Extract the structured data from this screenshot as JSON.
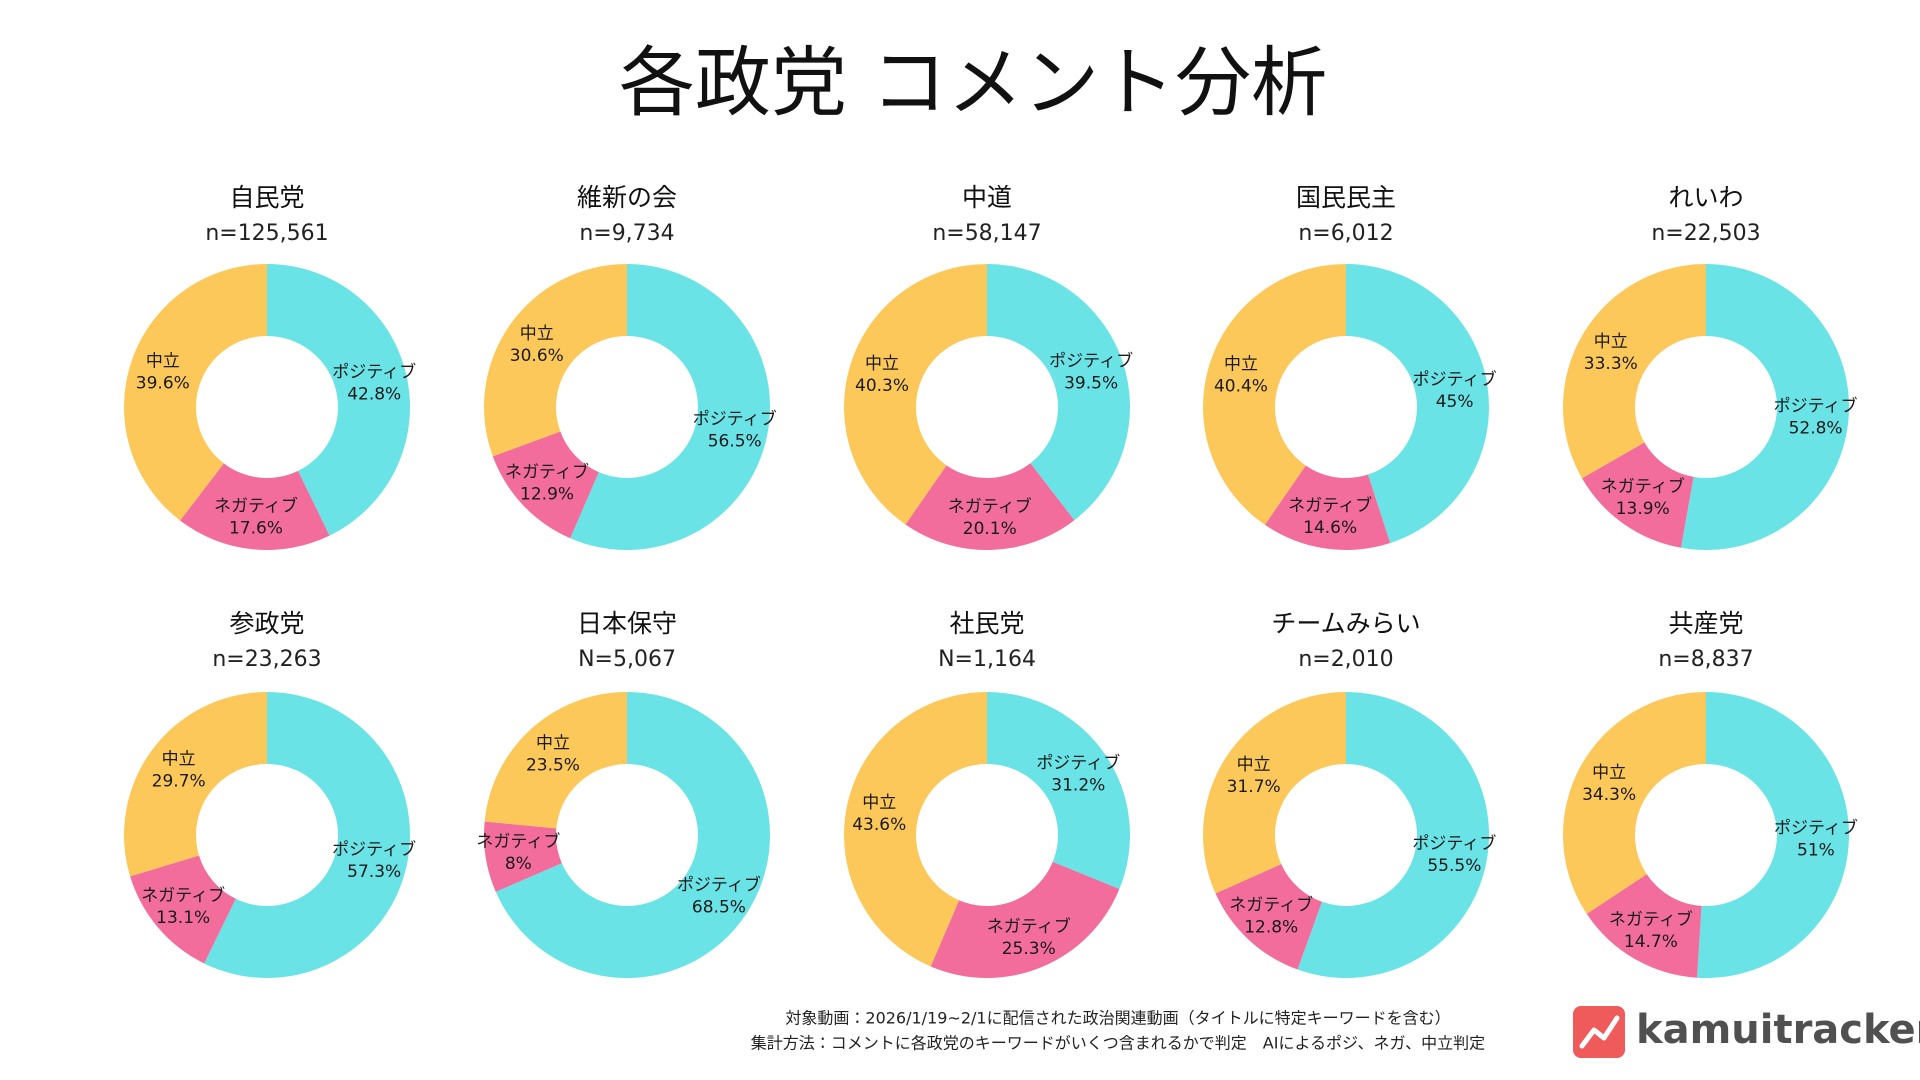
{
  "title": "各政党 コメント分析",
  "chart_data": [
    {
      "type": "pie",
      "title": "自民党",
      "subtitle": "n=125,561",
      "categories": [
        "ポジティブ",
        "ネガティブ",
        "中立"
      ],
      "values": [
        42.8,
        17.6,
        39.6
      ],
      "value_labels": [
        "42.8%",
        "17.6%",
        "39.6%"
      ],
      "colors": [
        "#6ae3e6",
        "#f26d9c",
        "#fdc85a"
      ]
    },
    {
      "type": "pie",
      "title": "維新の会",
      "subtitle": "n=9,734",
      "categories": [
        "ポジティブ",
        "ネガティブ",
        "中立"
      ],
      "values": [
        56.5,
        12.9,
        30.6
      ],
      "value_labels": [
        "56.5%",
        "12.9%",
        "30.6%"
      ],
      "colors": [
        "#6ae3e6",
        "#f26d9c",
        "#fdc85a"
      ]
    },
    {
      "type": "pie",
      "title": "中道",
      "subtitle": "n=58,147",
      "categories": [
        "ポジティブ",
        "ネガティブ",
        "中立"
      ],
      "values": [
        39.5,
        20.1,
        40.3
      ],
      "value_labels": [
        "39.5%",
        "20.1%",
        "40.3%"
      ],
      "colors": [
        "#6ae3e6",
        "#f26d9c",
        "#fdc85a"
      ]
    },
    {
      "type": "pie",
      "title": "国民民主",
      "subtitle": "n=6,012",
      "categories": [
        "ポジティブ",
        "ネガティブ",
        "中立"
      ],
      "values": [
        45,
        14.6,
        40.4
      ],
      "value_labels": [
        "45%",
        "14.6%",
        "40.4%"
      ],
      "colors": [
        "#6ae3e6",
        "#f26d9c",
        "#fdc85a"
      ]
    },
    {
      "type": "pie",
      "title": "れいわ",
      "subtitle": "n=22,503",
      "categories": [
        "ポジティブ",
        "ネガティブ",
        "中立"
      ],
      "values": [
        52.8,
        13.9,
        33.3
      ],
      "value_labels": [
        "52.8%",
        "13.9%",
        "33.3%"
      ],
      "colors": [
        "#6ae3e6",
        "#f26d9c",
        "#fdc85a"
      ]
    },
    {
      "type": "pie",
      "title": "参政党",
      "subtitle": "n=23,263",
      "categories": [
        "ポジティブ",
        "ネガティブ",
        "中立"
      ],
      "values": [
        57.3,
        13.1,
        29.7
      ],
      "value_labels": [
        "57.3%",
        "13.1%",
        "29.7%"
      ],
      "colors": [
        "#6ae3e6",
        "#f26d9c",
        "#fdc85a"
      ]
    },
    {
      "type": "pie",
      "title": "日本保守",
      "subtitle": "N=5,067",
      "categories": [
        "ポジティブ",
        "ネガティブ",
        "中立"
      ],
      "values": [
        68.5,
        8,
        23.5
      ],
      "value_labels": [
        "68.5%",
        "8%",
        "23.5%"
      ],
      "colors": [
        "#6ae3e6",
        "#f26d9c",
        "#fdc85a"
      ]
    },
    {
      "type": "pie",
      "title": "社民党",
      "subtitle": "N=1,164",
      "categories": [
        "ポジティブ",
        "ネガティブ",
        "中立"
      ],
      "values": [
        31.2,
        25.3,
        43.6
      ],
      "value_labels": [
        "31.2%",
        "25.3%",
        "43.6%"
      ],
      "colors": [
        "#6ae3e6",
        "#f26d9c",
        "#fdc85a"
      ]
    },
    {
      "type": "pie",
      "title": "チームみらい",
      "subtitle": "n=2,010",
      "categories": [
        "ポジティブ",
        "ネガティブ",
        "中立"
      ],
      "values": [
        55.5,
        12.8,
        31.7
      ],
      "value_labels": [
        "55.5%",
        "12.8%",
        "31.7%"
      ],
      "colors": [
        "#6ae3e6",
        "#f26d9c",
        "#fdc85a"
      ]
    },
    {
      "type": "pie",
      "title": "共産党",
      "subtitle": "n=8,837",
      "categories": [
        "ポジティブ",
        "ネガティブ",
        "中立"
      ],
      "values": [
        51,
        14.7,
        34.3
      ],
      "value_labels": [
        "51%",
        "14.7%",
        "34.3%"
      ],
      "colors": [
        "#6ae3e6",
        "#f26d9c",
        "#fdc85a"
      ]
    }
  ],
  "footer": [
    "対象動画：2026/1/19~2/1に配信された政治関連動画（タイトルに特定キーワードを含む）",
    "集計方法：コメントに各政党のキーワードがいくつ含まれるかで判定　AIによるポジ、ネガ、中立判定"
  ],
  "logo": "kamuitracker"
}
